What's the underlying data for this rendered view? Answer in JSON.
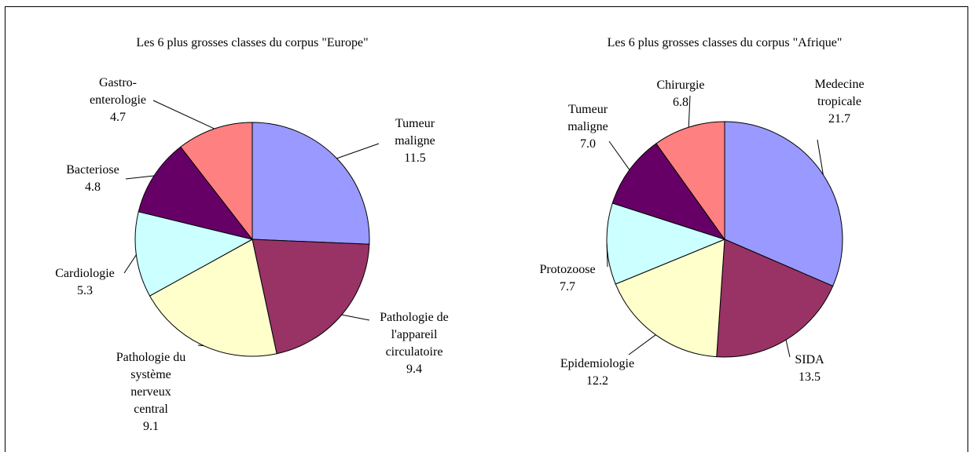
{
  "chart_data": [
    {
      "type": "pie",
      "title": "Les 6 plus grosses classes du corpus \"Europe\"",
      "categories": [
        "Tumeur\nmaligne",
        "Pathologie de\nl'appareil\ncirculatoire",
        "Pathologie du\nsystème\nnerveux\ncentral",
        "Cardiologie",
        "Bacteriose",
        "Gastro-\nenterologie"
      ],
      "values": [
        11.5,
        9.4,
        9.1,
        5.3,
        4.8,
        4.7
      ],
      "value_labels": [
        "11.5",
        "9.4",
        "9.1",
        "5.3",
        "4.8",
        "4.7"
      ],
      "colors": [
        "#9999ff",
        "#993366",
        "#ffffcc",
        "#ccffff",
        "#660066",
        "#ff8080"
      ]
    },
    {
      "type": "pie",
      "title": "Les 6 plus grosses classes du corpus \"Afrique\"",
      "categories": [
        "Medecine\ntropicale",
        "SIDA",
        "Epidemiologie",
        "Protozoose",
        "Tumeur\nmaligne",
        "Chirurgie"
      ],
      "values": [
        21.7,
        13.5,
        12.2,
        7.7,
        7.0,
        6.8
      ],
      "value_labels": [
        "21.7",
        "13.5",
        "12.2",
        "7.7",
        "7.0",
        "6.8"
      ],
      "colors": [
        "#9999ff",
        "#993366",
        "#ffffcc",
        "#ccffff",
        "#660066",
        "#ff8080"
      ]
    }
  ]
}
